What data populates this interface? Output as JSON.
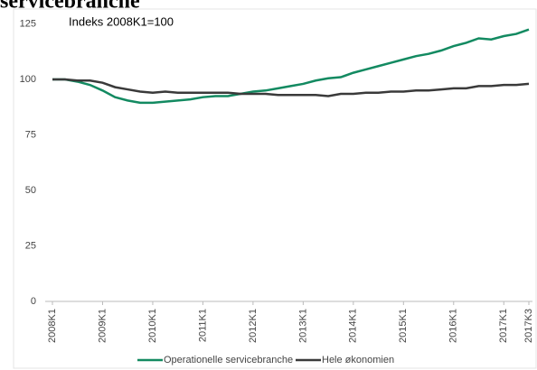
{
  "chart_data": {
    "type": "line",
    "title": "servicebranche",
    "annotation": "Indeks 2008K1=100",
    "categories": [
      "2008K1",
      null,
      null,
      null,
      "2009K1",
      null,
      null,
      null,
      "2010K1",
      null,
      null,
      null,
      "2011K1",
      null,
      null,
      null,
      "2012K1",
      null,
      null,
      null,
      "2013K1",
      null,
      null,
      null,
      "2014K1",
      null,
      null,
      null,
      "2015K1",
      null,
      null,
      null,
      "2016K1",
      null,
      null,
      null,
      "2017K1",
      null,
      "2017K3"
    ],
    "series": [
      {
        "name": "Operationelle servicebranche",
        "color": "#138a61",
        "values": [
          100,
          100,
          99,
          97.5,
          95,
          92,
          90.5,
          89.5,
          89.5,
          90,
          90.5,
          91,
          92,
          92.5,
          92.5,
          93.5,
          94.5,
          95,
          96,
          97,
          98,
          99.5,
          100.5,
          101,
          103,
          104.5,
          106,
          107.5,
          109,
          110.5,
          111.5,
          113,
          115,
          116.5,
          118.5,
          118,
          119.5,
          120.5,
          122.5
        ]
      },
      {
        "name": "Hele økonomien",
        "color": "#3a3a3a",
        "values": [
          100,
          100,
          99.5,
          99.5,
          98.5,
          96.5,
          95.5,
          94.5,
          94,
          94.5,
          94,
          94,
          94,
          94,
          94,
          93.5,
          93.5,
          93.5,
          93,
          93,
          93,
          93,
          92.5,
          93.5,
          93.5,
          94,
          94,
          94.5,
          94.5,
          95,
          95,
          95.5,
          96,
          96,
          97,
          97,
          97.5,
          97.5,
          98
        ]
      }
    ],
    "ylim": [
      0,
      125
    ],
    "yticks": [
      0,
      25,
      50,
      75,
      100,
      125
    ],
    "grid": false,
    "legend": "bottom"
  }
}
